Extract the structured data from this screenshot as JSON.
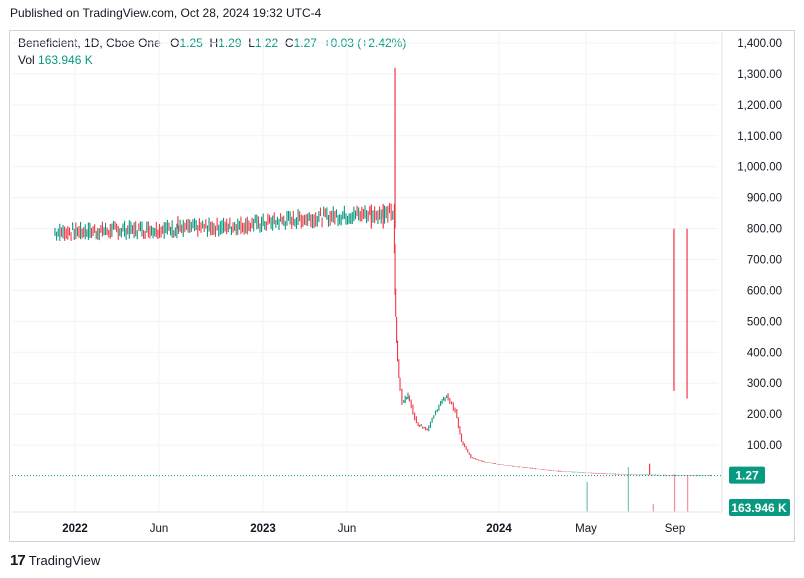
{
  "header": {
    "published": "Published on TradingView.com, Oct 28, 2024 19:32 UTC-4"
  },
  "legend": {
    "symbol": "Beneficient, 1D, Cboe One",
    "open_label": "O",
    "open": "1.25",
    "high_label": "H",
    "high": "1.29",
    "low_label": "L",
    "low": "1.22",
    "close_label": "C",
    "close": "1.27",
    "change": "+0.03 (+2.42%)",
    "vol_label": "Vol",
    "vol": "163.946 K"
  },
  "colors": {
    "up": "#089981",
    "down": "#f23645",
    "axis_text": "#131722",
    "grid": "#f0f3fa",
    "price_line": "#089981"
  },
  "footer": {
    "logo_text": "TradingView"
  },
  "chart_data": {
    "type": "candlestick",
    "title": "Beneficient, 1D, Cboe One",
    "y_axis": {
      "ticks": [
        "1,400.00",
        "1,300.00",
        "1,200.00",
        "1,100.00",
        "1,000.00",
        "900.00",
        "800.00",
        "700.00",
        "600.00",
        "500.00",
        "400.00",
        "300.00",
        "200.00",
        "100.00"
      ],
      "ylim": [
        0,
        1400
      ],
      "position": "right",
      "grid": true
    },
    "x_axis": {
      "ticks": [
        "2022",
        "Jun",
        "2023",
        "Jun",
        "2024",
        "May",
        "Sep"
      ],
      "major": [
        "2022",
        "2023",
        "2024"
      ]
    },
    "last_price_label": "1.27",
    "volume_label": "163.946 K",
    "series_close": [
      {
        "d": "2021-12-10",
        "c": 788
      },
      {
        "d": "2022-01-15",
        "c": 790
      },
      {
        "d": "2022-03-01",
        "c": 793
      },
      {
        "d": "2022-05-01",
        "c": 797
      },
      {
        "d": "2022-07-01",
        "c": 800
      },
      {
        "d": "2022-09-01",
        "c": 805
      },
      {
        "d": "2022-11-01",
        "c": 815
      },
      {
        "d": "2023-01-01",
        "c": 830
      },
      {
        "d": "2023-03-01",
        "c": 840
      },
      {
        "d": "2023-05-01",
        "c": 848
      },
      {
        "d": "2023-06-07",
        "c": 850
      },
      {
        "d": "2023-06-09",
        "c": 600
      },
      {
        "d": "2023-06-12",
        "c": 430
      },
      {
        "d": "2023-06-16",
        "c": 320
      },
      {
        "d": "2023-06-22",
        "c": 240
      },
      {
        "d": "2023-07-01",
        "c": 260
      },
      {
        "d": "2023-07-15",
        "c": 170
      },
      {
        "d": "2023-08-01",
        "c": 150
      },
      {
        "d": "2023-08-20",
        "c": 230
      },
      {
        "d": "2023-09-01",
        "c": 260
      },
      {
        "d": "2023-09-15",
        "c": 210
      },
      {
        "d": "2023-09-25",
        "c": 110
      },
      {
        "d": "2023-10-10",
        "c": 60
      },
      {
        "d": "2023-11-01",
        "c": 45
      },
      {
        "d": "2023-12-01",
        "c": 35
      },
      {
        "d": "2024-01-01",
        "c": 28
      },
      {
        "d": "2024-03-01",
        "c": 15
      },
      {
        "d": "2024-05-01",
        "c": 8
      },
      {
        "d": "2024-07-01",
        "c": 4
      },
      {
        "d": "2024-09-01",
        "c": 2
      },
      {
        "d": "2024-10-28",
        "c": 1.27
      }
    ],
    "spikes": [
      {
        "d": "2022-06-25",
        "h": 840
      },
      {
        "d": "2023-05-01",
        "h": 878
      },
      {
        "d": "2023-05-20",
        "h": 880
      },
      {
        "d": "2023-06-08",
        "h": 1320
      },
      {
        "d": "2024-07-20",
        "h": 40
      },
      {
        "d": "2024-08-28",
        "h": 275
      },
      {
        "d": "2024-09-18",
        "h": 250
      }
    ]
  }
}
